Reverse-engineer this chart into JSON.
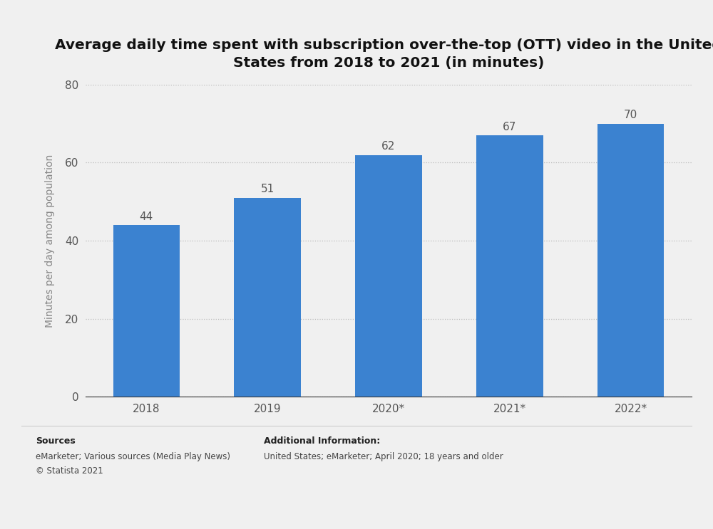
{
  "title": "Average daily time spent with subscription over-the-top (OTT) video in the United\nStates from 2018 to 2021 (in minutes)",
  "categories": [
    "2018",
    "2019",
    "2020*",
    "2021*",
    "2022*"
  ],
  "values": [
    44,
    51,
    62,
    67,
    70
  ],
  "bar_color": "#3b82d0",
  "ylabel": "Minutes per day among population",
  "ylim": [
    0,
    80
  ],
  "yticks": [
    0,
    20,
    40,
    60,
    80
  ],
  "background_color": "#f0f0f0",
  "plot_bg_color": "#f0f0f0",
  "title_fontsize": 14.5,
  "label_fontsize": 10,
  "tick_fontsize": 11,
  "annotation_fontsize": 11,
  "sources_label": "Sources",
  "sources_line1": "eMarketer; Various sources (Media Play News)",
  "sources_line2": "© Statista 2021",
  "additional_label": "Additional Information:",
  "additional_line1": "United States; eMarketer; April 2020; 18 years and older"
}
